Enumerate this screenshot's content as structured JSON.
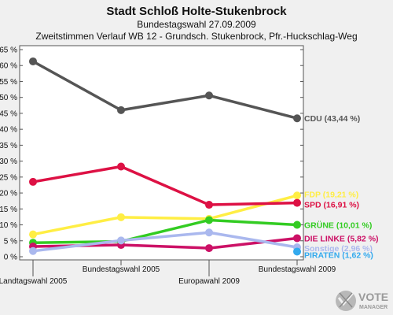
{
  "header": {
    "title": "Stadt Schloß Holte-Stukenbrock",
    "subtitle1": "Bundestagswahl 27.09.2009",
    "subtitle2": "Zweitstimmen Verlauf WB 12 - Grundsch. Stukenbrock, Pfr.-Huckschlag-Weg"
  },
  "logo": {
    "line1": "VOTE",
    "line2": "MANAGER"
  },
  "chart_data": {
    "type": "line",
    "title": "Stadt Schloß Holte-Stukenbrock",
    "categories": [
      "Landtagswahl 2005",
      "Bundestagswahl 2005",
      "Europawahl 2009",
      "Bundestagswahl 2009"
    ],
    "category_label_rows": [
      "low",
      "high",
      "low",
      "high"
    ],
    "ylim": [
      0,
      65
    ],
    "yticks": [
      0,
      5,
      10,
      15,
      20,
      25,
      30,
      35,
      40,
      45,
      50,
      55,
      60,
      65
    ],
    "ytick_labels": [
      "0 %",
      "5 %",
      "10 %",
      "15 %",
      "20 %",
      "25 %",
      "30 %",
      "35 %",
      "40 %",
      "45 %",
      "50 %",
      "55 %",
      "60 %",
      "65 %"
    ],
    "grid": false,
    "series": [
      {
        "name": "CDU",
        "label": "CDU (43,44 %)",
        "color": "#555555",
        "values": [
          61.3,
          46.0,
          50.6,
          43.44
        ]
      },
      {
        "name": "FDP",
        "label": "FDP (19,21 %)",
        "color": "#ffee44",
        "values": [
          7.0,
          12.4,
          11.9,
          19.21
        ]
      },
      {
        "name": "SPD",
        "label": "SPD (16,91 %)",
        "color": "#dd1144",
        "values": [
          23.5,
          28.3,
          16.3,
          16.91
        ]
      },
      {
        "name": "GRÜNE",
        "label": "GRÜNE (10,01 %)",
        "color": "#33cc22",
        "values": [
          4.4,
          4.8,
          11.5,
          10.01
        ]
      },
      {
        "name": "DIE LINKE",
        "label": "DIE LINKE (5,82 %)",
        "color": "#cc1166",
        "values": [
          3.2,
          3.7,
          2.7,
          5.82
        ]
      },
      {
        "name": "Sonstige",
        "label": "Sonstige (2,96 %)",
        "color": "#aab8ee",
        "values": [
          1.8,
          5.1,
          7.6,
          2.96
        ]
      },
      {
        "name": "PIRATEN",
        "label": "PIRATEN (1,62 %)",
        "color": "#33aaee",
        "values": [
          null,
          null,
          null,
          1.62
        ]
      }
    ]
  }
}
